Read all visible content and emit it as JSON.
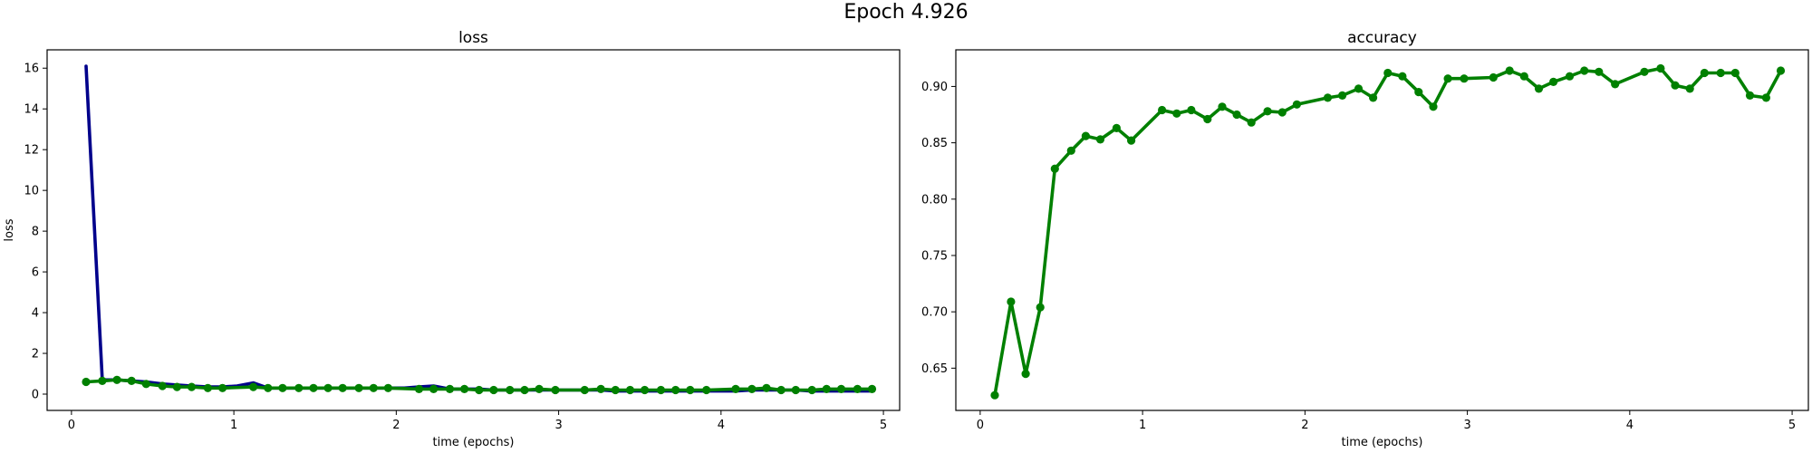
{
  "figure": {
    "suptitle": "Epoch 4.926"
  },
  "colors": {
    "train": "#00008b",
    "val": "#008000"
  },
  "chart_data": [
    {
      "type": "line",
      "title": "loss",
      "xlabel": "time (epochs)",
      "ylabel": "loss",
      "xlim": [
        -0.15,
        5.1
      ],
      "ylim": [
        -0.8,
        16.9
      ],
      "xticks": [
        0,
        1,
        2,
        3,
        4,
        5
      ],
      "yticks": [
        0,
        2,
        4,
        6,
        8,
        10,
        12,
        14,
        16
      ],
      "grid": false,
      "series": [
        {
          "color": "#00008b",
          "markers": false,
          "x": [
            0.09,
            0.19,
            0.28,
            0.37,
            0.46,
            0.56,
            0.65,
            0.74,
            0.84,
            0.93,
            1.02,
            1.12,
            1.21,
            1.3,
            1.4,
            1.49,
            1.58,
            1.67,
            1.77,
            1.86,
            1.95,
            2.05,
            2.14,
            2.23,
            2.33,
            2.42,
            2.51,
            2.6,
            2.7,
            2.79,
            2.88,
            2.98,
            3.07,
            3.16,
            3.26,
            3.35,
            3.44,
            3.53,
            3.63,
            3.72,
            3.81,
            3.91,
            4.0,
            4.09,
            4.19,
            4.28,
            4.37,
            4.46,
            4.56,
            4.65,
            4.74,
            4.84,
            4.93
          ],
          "y": [
            16.1,
            0.7,
            0.7,
            0.65,
            0.6,
            0.5,
            0.45,
            0.4,
            0.35,
            0.35,
            0.4,
            0.55,
            0.3,
            0.3,
            0.3,
            0.3,
            0.3,
            0.3,
            0.3,
            0.3,
            0.3,
            0.3,
            0.35,
            0.4,
            0.25,
            0.25,
            0.25,
            0.2,
            0.2,
            0.2,
            0.2,
            0.2,
            0.2,
            0.2,
            0.2,
            0.15,
            0.15,
            0.15,
            0.15,
            0.15,
            0.15,
            0.15,
            0.15,
            0.15,
            0.2,
            0.2,
            0.2,
            0.2,
            0.15,
            0.15,
            0.15,
            0.15,
            0.15
          ]
        },
        {
          "color": "#008000",
          "markers": true,
          "x": [
            0.09,
            0.19,
            0.28,
            0.37,
            0.46,
            0.56,
            0.65,
            0.74,
            0.84,
            0.93,
            1.12,
            1.21,
            1.3,
            1.4,
            1.49,
            1.58,
            1.67,
            1.77,
            1.86,
            1.95,
            2.14,
            2.23,
            2.33,
            2.42,
            2.51,
            2.6,
            2.7,
            2.79,
            2.88,
            2.98,
            3.16,
            3.26,
            3.35,
            3.44,
            3.53,
            3.63,
            3.72,
            3.81,
            3.91,
            4.09,
            4.19,
            4.28,
            4.37,
            4.46,
            4.56,
            4.65,
            4.74,
            4.84,
            4.93
          ],
          "y": [
            0.6,
            0.65,
            0.7,
            0.65,
            0.5,
            0.4,
            0.35,
            0.35,
            0.3,
            0.3,
            0.35,
            0.3,
            0.3,
            0.3,
            0.3,
            0.3,
            0.3,
            0.3,
            0.3,
            0.3,
            0.25,
            0.25,
            0.25,
            0.25,
            0.2,
            0.2,
            0.2,
            0.2,
            0.25,
            0.2,
            0.2,
            0.25,
            0.2,
            0.2,
            0.2,
            0.2,
            0.2,
            0.2,
            0.2,
            0.25,
            0.25,
            0.3,
            0.2,
            0.2,
            0.2,
            0.25,
            0.25,
            0.25,
            0.25
          ]
        }
      ]
    },
    {
      "type": "line",
      "title": "accuracy",
      "xlabel": "time (epochs)",
      "ylabel": "",
      "xlim": [
        -0.15,
        5.1
      ],
      "ylim": [
        0.6125,
        0.9325
      ],
      "xticks": [
        0,
        1,
        2,
        3,
        4,
        5
      ],
      "yticks": [
        0.65,
        0.7,
        0.75,
        0.8,
        0.85,
        0.9
      ],
      "ytick_decimals": 2,
      "grid": false,
      "series": [
        {
          "color": "#008000",
          "markers": true,
          "x": [
            0.09,
            0.19,
            0.28,
            0.37,
            0.46,
            0.56,
            0.65,
            0.74,
            0.84,
            0.93,
            1.12,
            1.21,
            1.3,
            1.4,
            1.49,
            1.58,
            1.67,
            1.77,
            1.86,
            1.95,
            2.14,
            2.23,
            2.33,
            2.42,
            2.51,
            2.6,
            2.7,
            2.79,
            2.88,
            2.98,
            3.16,
            3.26,
            3.35,
            3.44,
            3.53,
            3.63,
            3.72,
            3.81,
            3.91,
            4.09,
            4.19,
            4.28,
            4.37,
            4.46,
            4.56,
            4.65,
            4.74,
            4.84,
            4.93
          ],
          "y": [
            0.626,
            0.709,
            0.645,
            0.704,
            0.827,
            0.843,
            0.856,
            0.853,
            0.863,
            0.852,
            0.879,
            0.876,
            0.879,
            0.871,
            0.882,
            0.875,
            0.868,
            0.878,
            0.877,
            0.884,
            0.89,
            0.892,
            0.898,
            0.89,
            0.912,
            0.909,
            0.895,
            0.882,
            0.907,
            0.907,
            0.908,
            0.914,
            0.909,
            0.898,
            0.904,
            0.909,
            0.914,
            0.913,
            0.902,
            0.913,
            0.916,
            0.901,
            0.898,
            0.912,
            0.912,
            0.912,
            0.892,
            0.89,
            0.914
          ]
        }
      ]
    }
  ]
}
